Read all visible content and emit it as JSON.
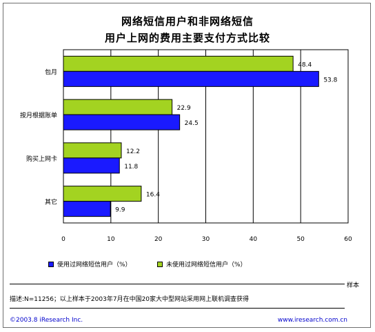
{
  "title_line1": "网络短信用户和非网络短信",
  "title_line2": "用户上网的费用主要支付方式比较",
  "colors": {
    "series_users": "#1a1aff",
    "series_nonusers": "#a3d321"
  },
  "chart_data": {
    "type": "bar",
    "orientation": "horizontal",
    "categories": [
      "包月",
      "按月根据账单",
      "购买上网卡",
      "其它"
    ],
    "series": [
      {
        "name": "未使用过网络短信用户（%）",
        "values": [
          48.4,
          22.9,
          12.2,
          16.4
        ]
      },
      {
        "name": "使用过网络短信用户（%）",
        "values": [
          53.8,
          24.5,
          11.8,
          9.9
        ]
      }
    ],
    "value_labels": [
      [
        "48.4",
        "22.9",
        "12.2",
        "16.4"
      ],
      [
        "53.8",
        "24.5",
        "11.8",
        "9.9"
      ]
    ],
    "xlim": [
      0,
      60
    ],
    "xticks": [
      "0",
      "10",
      "20",
      "30",
      "40",
      "50",
      "60"
    ],
    "grid": true,
    "legend_position": "bottom"
  },
  "legend": {
    "users": "使用过网络短信用户（%）",
    "nonusers": "未使用过网络短信用户（%）"
  },
  "sample_label": "样本",
  "note": "描述:N=11256；以上样本于2003年7月在中国20家大中型网站采用网上联机调查获得",
  "footer": {
    "copyright": "©2003.8  iResearch Inc.",
    "website": "www.iresearch.com.cn"
  }
}
